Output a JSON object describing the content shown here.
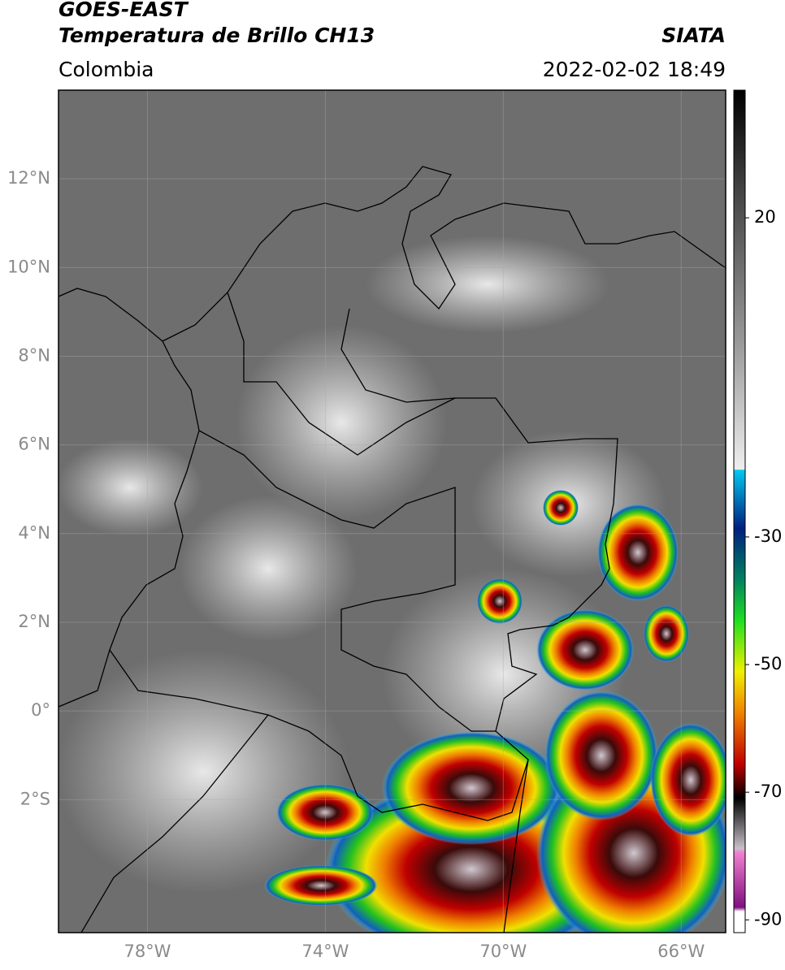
{
  "header": {
    "title": "GOES-EAST",
    "subtitle": "Temperatura de Brillo CH13",
    "source": "SIATA",
    "region": "Colombia",
    "datetime": "2022-02-02 18:49"
  },
  "map": {
    "xlim": [
      -80,
      -65
    ],
    "ylim": [
      -5,
      14
    ],
    "lat_ticks": [
      {
        "value": 12,
        "label": "12°N"
      },
      {
        "value": 10,
        "label": "10°N"
      },
      {
        "value": 8,
        "label": "8°N"
      },
      {
        "value": 6,
        "label": "6°N"
      },
      {
        "value": 4,
        "label": "4°N"
      },
      {
        "value": 2,
        "label": "2°N"
      },
      {
        "value": 0,
        "label": "0°"
      },
      {
        "value": -2,
        "label": "2°S"
      }
    ],
    "lon_ticks": [
      {
        "value": -78,
        "label": "78°W"
      },
      {
        "value": -74,
        "label": "74°W"
      },
      {
        "value": -70,
        "label": "70°W"
      },
      {
        "value": -66,
        "label": "66°W"
      }
    ],
    "grid": true
  },
  "colorbar": {
    "lim": [
      -92,
      40
    ],
    "ticks": [
      20,
      -30,
      -50,
      -70,
      -90
    ]
  }
}
